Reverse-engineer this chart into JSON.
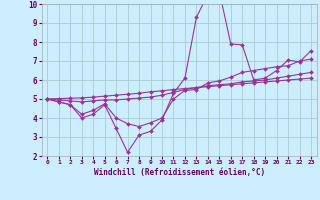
{
  "title": "",
  "xlabel": "Windchill (Refroidissement éolien,°C)",
  "bg_color": "#cceeff",
  "grid_color": "#aacccc",
  "line_color": "#993399",
  "xlim": [
    -0.5,
    23.5
  ],
  "ylim": [
    2,
    10
  ],
  "yticks": [
    2,
    3,
    4,
    5,
    6,
    7,
    8,
    9,
    10
  ],
  "xticks": [
    0,
    1,
    2,
    3,
    4,
    5,
    6,
    7,
    8,
    9,
    10,
    11,
    12,
    13,
    14,
    15,
    16,
    17,
    18,
    19,
    20,
    21,
    22,
    23
  ],
  "series": [
    [
      5.0,
      4.85,
      4.7,
      4.0,
      4.2,
      4.7,
      3.45,
      2.2,
      3.1,
      3.3,
      3.9,
      5.3,
      6.1,
      9.3,
      10.5,
      10.65,
      7.9,
      7.85,
      6.0,
      6.1,
      6.5,
      7.05,
      6.95,
      7.55
    ],
    [
      5.0,
      4.85,
      4.7,
      4.2,
      4.4,
      4.75,
      4.0,
      3.7,
      3.55,
      3.75,
      4.0,
      5.0,
      5.45,
      5.5,
      5.85,
      5.95,
      6.15,
      6.4,
      6.5,
      6.6,
      6.7,
      6.75,
      7.0,
      7.1
    ],
    [
      5.0,
      4.95,
      4.9,
      4.85,
      4.9,
      4.95,
      4.95,
      5.0,
      5.05,
      5.1,
      5.2,
      5.35,
      5.5,
      5.6,
      5.7,
      5.75,
      5.8,
      5.9,
      5.95,
      6.0,
      6.1,
      6.2,
      6.3,
      6.4
    ],
    [
      5.0,
      5.02,
      5.04,
      5.06,
      5.1,
      5.15,
      5.2,
      5.25,
      5.3,
      5.38,
      5.43,
      5.5,
      5.55,
      5.6,
      5.65,
      5.7,
      5.75,
      5.8,
      5.85,
      5.9,
      5.95,
      6.0,
      6.05,
      6.1
    ]
  ]
}
